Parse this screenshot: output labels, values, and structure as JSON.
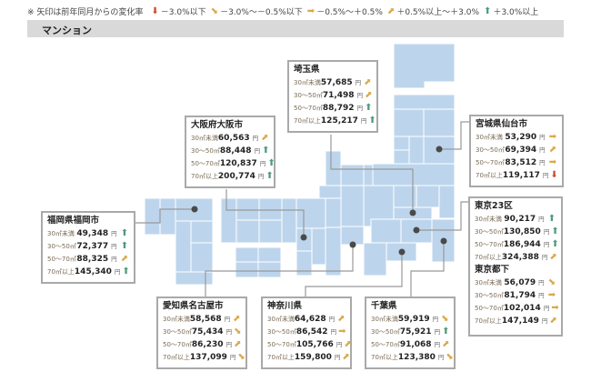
{
  "legend": {
    "note": "※ 矢印は前年同月からの変化率",
    "items": [
      {
        "trend": "down",
        "label": "－3.0%以下"
      },
      {
        "trend": "downr",
        "label": "－3.0%～－0.5%以下"
      },
      {
        "trend": "flat",
        "label": "－0.5%～＋0.5%"
      },
      {
        "trend": "upr",
        "label": "＋0.5%以上～＋3.0%"
      },
      {
        "trend": "up",
        "label": "＋3.0%以上"
      }
    ]
  },
  "section_title": "マンション",
  "colors": {
    "map": "#bdd5ec",
    "up": "#4f9a7c",
    "down": "#d1462b",
    "neutral": "#d9a94a",
    "border": "#a9a9a9"
  },
  "icons": {
    "up": "arrow-up-icon",
    "down": "arrow-down-icon",
    "flat": "arrow-right-icon",
    "upr": "arrow-up-right-icon",
    "downr": "arrow-down-right-icon"
  },
  "regions": [
    {
      "id": "saitama",
      "sections": [
        {
          "name": "埼玉県",
          "rows": [
            {
              "label": "30㎡未満",
              "value": "57,685",
              "unit": "円",
              "trend": "upr"
            },
            {
              "label": "30～50㎡",
              "value": "71,498",
              "unit": "円",
              "trend": "upr"
            },
            {
              "label": "50～70㎡",
              "value": "88,792",
              "unit": "円",
              "trend": "up"
            },
            {
              "label": "70㎡以上",
              "value": "125,217",
              "unit": "円",
              "trend": "up"
            }
          ]
        }
      ]
    },
    {
      "id": "osaka",
      "sections": [
        {
          "name": "大阪府大阪市",
          "rows": [
            {
              "label": "30㎡未満",
              "value": "60,563",
              "unit": "円",
              "trend": "upr"
            },
            {
              "label": "30～50㎡",
              "value": "88,448",
              "unit": "円",
              "trend": "up"
            },
            {
              "label": "50～70㎡",
              "value": "120,837",
              "unit": "円",
              "trend": "up"
            },
            {
              "label": "70㎡以上",
              "value": "200,774",
              "unit": "円",
              "trend": "up"
            }
          ]
        }
      ]
    },
    {
      "id": "sendai",
      "sections": [
        {
          "name": "宮城県仙台市",
          "rows": [
            {
              "label": "30㎡未満",
              "value": "53,290",
              "unit": "円",
              "trend": "flat"
            },
            {
              "label": "30～50㎡",
              "value": "69,394",
              "unit": "円",
              "trend": "upr"
            },
            {
              "label": "50～70㎡",
              "value": "83,512",
              "unit": "円",
              "trend": "flat"
            },
            {
              "label": "70㎡以上",
              "value": "119,117",
              "unit": "円",
              "trend": "down"
            }
          ]
        }
      ]
    },
    {
      "id": "tokyo",
      "sections": [
        {
          "name": "東京23区",
          "rows": [
            {
              "label": "30㎡未満",
              "value": "90,217",
              "unit": "円",
              "trend": "up"
            },
            {
              "label": "30～50㎡",
              "value": "130,850",
              "unit": "円",
              "trend": "up"
            },
            {
              "label": "50～70㎡",
              "value": "186,944",
              "unit": "円",
              "trend": "up"
            },
            {
              "label": "70㎡以上",
              "value": "324,388",
              "unit": "円",
              "trend": "upr"
            }
          ]
        },
        {
          "name": "東京都下",
          "rows": [
            {
              "label": "30㎡未満",
              "value": "56,079",
              "unit": "円",
              "trend": "downr"
            },
            {
              "label": "30～50㎡",
              "value": "81,794",
              "unit": "円",
              "trend": "flat"
            },
            {
              "label": "50～70㎡",
              "value": "102,014",
              "unit": "円",
              "trend": "flat"
            },
            {
              "label": "70㎡以上",
              "value": "147,149",
              "unit": "円",
              "trend": "upr"
            }
          ]
        }
      ]
    },
    {
      "id": "fukuoka",
      "sections": [
        {
          "name": "福岡県福岡市",
          "rows": [
            {
              "label": "30㎡未満",
              "value": "49,348",
              "unit": "円",
              "trend": "up"
            },
            {
              "label": "30～50㎡",
              "value": "72,377",
              "unit": "円",
              "trend": "up"
            },
            {
              "label": "50～70㎡",
              "value": "88,325",
              "unit": "円",
              "trend": "upr"
            },
            {
              "label": "70㎡以上",
              "value": "145,340",
              "unit": "円",
              "trend": "up"
            }
          ]
        }
      ]
    },
    {
      "id": "aichi",
      "sections": [
        {
          "name": "愛知県名古屋市",
          "rows": [
            {
              "label": "30㎡未満",
              "value": "58,568",
              "unit": "円",
              "trend": "upr"
            },
            {
              "label": "30～50㎡",
              "value": "75,434",
              "unit": "円",
              "trend": "downr"
            },
            {
              "label": "50～70㎡",
              "value": "86,230",
              "unit": "円",
              "trend": "upr"
            },
            {
              "label": "70㎡以上",
              "value": "137,099",
              "unit": "円",
              "trend": "downr"
            }
          ]
        }
      ]
    },
    {
      "id": "kanagawa",
      "sections": [
        {
          "name": "神奈川県",
          "rows": [
            {
              "label": "30㎡未満",
              "value": "64,628",
              "unit": "円",
              "trend": "upr"
            },
            {
              "label": "30～50㎡",
              "value": "86,542",
              "unit": "円",
              "trend": "flat"
            },
            {
              "label": "50～70㎡",
              "value": "105,766",
              "unit": "円",
              "trend": "upr"
            },
            {
              "label": "70㎡以上",
              "value": "159,800",
              "unit": "円",
              "trend": "upr"
            }
          ]
        }
      ]
    },
    {
      "id": "chiba",
      "sections": [
        {
          "name": "千葉県",
          "rows": [
            {
              "label": "30㎡未満",
              "value": "59,919",
              "unit": "円",
              "trend": "downr"
            },
            {
              "label": "30～50㎡",
              "value": "75,921",
              "unit": "円",
              "trend": "up"
            },
            {
              "label": "50～70㎡",
              "value": "91,068",
              "unit": "円",
              "trend": "upr"
            },
            {
              "label": "70㎡以上",
              "value": "123,380",
              "unit": "円",
              "trend": "downr"
            }
          ]
        }
      ]
    }
  ]
}
